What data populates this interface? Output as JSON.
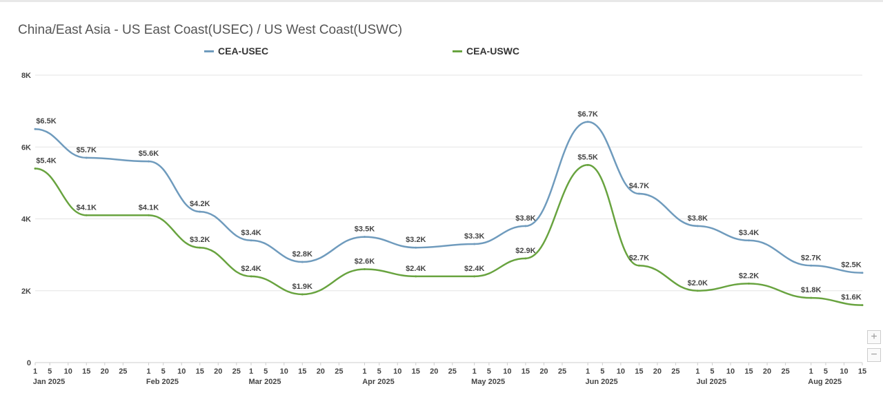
{
  "chart_data": {
    "type": "line",
    "title": "China/East Asia - US East Coast(USEC) / US West Coast(USWC)",
    "ylim": [
      0,
      8000
    ],
    "y_ticks": [
      "0",
      "2K",
      "4K",
      "6K",
      "8K"
    ],
    "y_tick_values": [
      0,
      2000,
      4000,
      6000,
      8000
    ],
    "legend_position": "top",
    "grid": true,
    "x_ticks": [
      {
        "date": "2025-01-01",
        "label": "1",
        "month": "Jan 2025"
      },
      {
        "date": "2025-01-05",
        "label": "5"
      },
      {
        "date": "2025-01-10",
        "label": "10"
      },
      {
        "date": "2025-01-15",
        "label": "15"
      },
      {
        "date": "2025-01-20",
        "label": "20"
      },
      {
        "date": "2025-01-25",
        "label": "25"
      },
      {
        "date": "2025-02-01",
        "label": "1",
        "month": "Feb 2025"
      },
      {
        "date": "2025-02-05",
        "label": "5"
      },
      {
        "date": "2025-02-10",
        "label": "10"
      },
      {
        "date": "2025-02-15",
        "label": "15"
      },
      {
        "date": "2025-02-20",
        "label": "20"
      },
      {
        "date": "2025-02-25",
        "label": "25"
      },
      {
        "date": "2025-03-01",
        "label": "1",
        "month": "Mar 2025"
      },
      {
        "date": "2025-03-05",
        "label": "5"
      },
      {
        "date": "2025-03-10",
        "label": "10"
      },
      {
        "date": "2025-03-15",
        "label": "15"
      },
      {
        "date": "2025-03-20",
        "label": "20"
      },
      {
        "date": "2025-03-25",
        "label": "25"
      },
      {
        "date": "2025-04-01",
        "label": "1",
        "month": "Apr 2025"
      },
      {
        "date": "2025-04-05",
        "label": "5"
      },
      {
        "date": "2025-04-10",
        "label": "10"
      },
      {
        "date": "2025-04-15",
        "label": "15"
      },
      {
        "date": "2025-04-20",
        "label": "20"
      },
      {
        "date": "2025-04-25",
        "label": "25"
      },
      {
        "date": "2025-05-01",
        "label": "1",
        "month": "May 2025"
      },
      {
        "date": "2025-05-05",
        "label": "5"
      },
      {
        "date": "2025-05-10",
        "label": "10"
      },
      {
        "date": "2025-05-15",
        "label": "15"
      },
      {
        "date": "2025-05-20",
        "label": "20"
      },
      {
        "date": "2025-05-25",
        "label": "25"
      },
      {
        "date": "2025-06-01",
        "label": "1",
        "month": "Jun 2025"
      },
      {
        "date": "2025-06-05",
        "label": "5"
      },
      {
        "date": "2025-06-10",
        "label": "10"
      },
      {
        "date": "2025-06-15",
        "label": "15"
      },
      {
        "date": "2025-06-20",
        "label": "20"
      },
      {
        "date": "2025-06-25",
        "label": "25"
      },
      {
        "date": "2025-07-01",
        "label": "1",
        "month": "Jul 2025"
      },
      {
        "date": "2025-07-05",
        "label": "5"
      },
      {
        "date": "2025-07-10",
        "label": "10"
      },
      {
        "date": "2025-07-15",
        "label": "15"
      },
      {
        "date": "2025-07-20",
        "label": "20"
      },
      {
        "date": "2025-07-25",
        "label": "25"
      },
      {
        "date": "2025-08-01",
        "label": "1",
        "month": "Aug 2025"
      },
      {
        "date": "2025-08-05",
        "label": "5"
      },
      {
        "date": "2025-08-10",
        "label": "10"
      },
      {
        "date": "2025-08-15",
        "label": "15"
      }
    ],
    "series": [
      {
        "name": "CEA-USEC",
        "color": "#6f9bbd",
        "points": [
          {
            "date": "2025-01-01",
            "value": 6500,
            "label": "$6.5K"
          },
          {
            "date": "2025-01-15",
            "value": 5700,
            "label": "$5.7K"
          },
          {
            "date": "2025-02-01",
            "value": 5600,
            "label": "$5.6K"
          },
          {
            "date": "2025-02-15",
            "value": 4200,
            "label": "$4.2K"
          },
          {
            "date": "2025-03-01",
            "value": 3400,
            "label": "$3.4K"
          },
          {
            "date": "2025-03-15",
            "value": 2800,
            "label": "$2.8K"
          },
          {
            "date": "2025-04-01",
            "value": 3500,
            "label": "$3.5K"
          },
          {
            "date": "2025-04-15",
            "value": 3200,
            "label": "$3.2K"
          },
          {
            "date": "2025-05-01",
            "value": 3300,
            "label": "$3.3K"
          },
          {
            "date": "2025-05-15",
            "value": 3800,
            "label": "$3.8K"
          },
          {
            "date": "2025-06-01",
            "value": 6700,
            "label": "$6.7K"
          },
          {
            "date": "2025-06-15",
            "value": 4700,
            "label": "$4.7K"
          },
          {
            "date": "2025-07-01",
            "value": 3800,
            "label": "$3.8K"
          },
          {
            "date": "2025-07-15",
            "value": 3400,
            "label": "$3.4K"
          },
          {
            "date": "2025-08-01",
            "value": 2700,
            "label": "$2.7K"
          },
          {
            "date": "2025-08-15",
            "value": 2500,
            "label": "$2.5K"
          }
        ]
      },
      {
        "name": "CEA-USWC",
        "color": "#68a33f",
        "points": [
          {
            "date": "2025-01-01",
            "value": 5400,
            "label": "$5.4K"
          },
          {
            "date": "2025-01-15",
            "value": 4100,
            "label": "$4.1K"
          },
          {
            "date": "2025-02-01",
            "value": 4100,
            "label": "$4.1K"
          },
          {
            "date": "2025-02-15",
            "value": 3200,
            "label": "$3.2K"
          },
          {
            "date": "2025-03-01",
            "value": 2400,
            "label": "$2.4K"
          },
          {
            "date": "2025-03-15",
            "value": 1900,
            "label": "$1.9K"
          },
          {
            "date": "2025-04-01",
            "value": 2600,
            "label": "$2.6K"
          },
          {
            "date": "2025-04-15",
            "value": 2400,
            "label": "$2.4K"
          },
          {
            "date": "2025-05-01",
            "value": 2400,
            "label": "$2.4K"
          },
          {
            "date": "2025-05-15",
            "value": 2900,
            "label": "$2.9K"
          },
          {
            "date": "2025-06-01",
            "value": 5500,
            "label": "$5.5K"
          },
          {
            "date": "2025-06-15",
            "value": 2700,
            "label": "$2.7K"
          },
          {
            "date": "2025-07-01",
            "value": 2000,
            "label": "$2.0K"
          },
          {
            "date": "2025-07-15",
            "value": 2200,
            "label": "$2.2K"
          },
          {
            "date": "2025-08-01",
            "value": 1800,
            "label": "$1.8K"
          },
          {
            "date": "2025-08-15",
            "value": 1600,
            "label": "$1.6K"
          }
        ]
      }
    ]
  },
  "controls": {
    "zoom_in_icon": "plus-icon",
    "zoom_out_icon": "minus-icon",
    "zoom_in_label": "+",
    "zoom_out_label": "−"
  }
}
